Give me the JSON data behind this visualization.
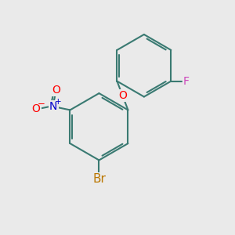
{
  "bg_color": "#eaeaea",
  "bond_color": "#3a7a72",
  "bond_width": 1.5,
  "atom_colors": {
    "O": "#ff0000",
    "N": "#0000cc",
    "F": "#cc44bb",
    "Br": "#bb7700"
  },
  "font_size_atom": 10,
  "fig_bg": "#eaeaea"
}
